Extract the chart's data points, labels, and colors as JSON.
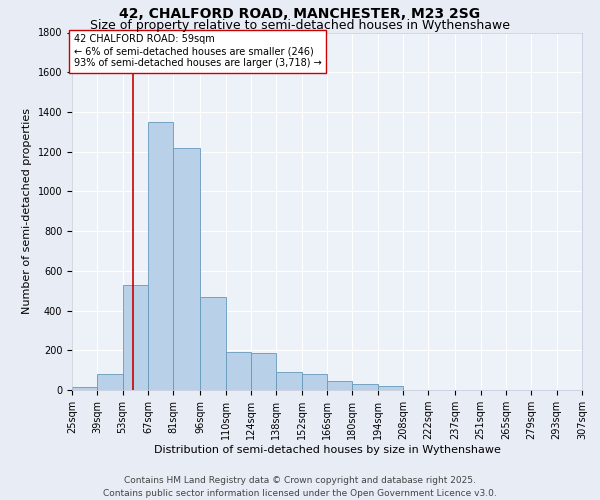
{
  "title": "42, CHALFORD ROAD, MANCHESTER, M23 2SG",
  "subtitle": "Size of property relative to semi-detached houses in Wythenshawe",
  "xlabel": "Distribution of semi-detached houses by size in Wythenshawe",
  "ylabel": "Number of semi-detached properties",
  "bin_labels": [
    "25sqm",
    "39sqm",
    "53sqm",
    "67sqm",
    "81sqm",
    "96sqm",
    "110sqm",
    "124sqm",
    "138sqm",
    "152sqm",
    "166sqm",
    "180sqm",
    "194sqm",
    "208sqm",
    "222sqm",
    "237sqm",
    "251sqm",
    "265sqm",
    "279sqm",
    "293sqm",
    "307sqm"
  ],
  "bin_edges": [
    25,
    39,
    53,
    67,
    81,
    96,
    110,
    124,
    138,
    152,
    166,
    180,
    194,
    208,
    222,
    237,
    251,
    265,
    279,
    293,
    307
  ],
  "bar_heights": [
    15,
    80,
    530,
    1350,
    1220,
    470,
    190,
    185,
    90,
    80,
    45,
    30,
    20,
    0,
    0,
    0,
    0,
    0,
    0,
    0
  ],
  "bar_color": "#b8d0e8",
  "bar_edge_color": "#6699bb",
  "property_line_x": 59,
  "red_line_color": "#cc0000",
  "annotation_text": "42 CHALFORD ROAD: 59sqm\n← 6% of semi-detached houses are smaller (246)\n93% of semi-detached houses are larger (3,718) →",
  "annotation_box_color": "white",
  "annotation_box_edge": "#cc0000",
  "ylim": [
    0,
    1800
  ],
  "yticks": [
    0,
    200,
    400,
    600,
    800,
    1000,
    1200,
    1400,
    1600,
    1800
  ],
  "footer": "Contains HM Land Registry data © Crown copyright and database right 2025.\nContains public sector information licensed under the Open Government Licence v3.0.",
  "bg_color": "#e8ecf5",
  "plot_bg_color": "#edf1f8",
  "grid_color": "white",
  "title_fontsize": 10,
  "subtitle_fontsize": 9,
  "axis_label_fontsize": 8,
  "tick_fontsize": 7,
  "annotation_fontsize": 7,
  "footer_fontsize": 6.5
}
